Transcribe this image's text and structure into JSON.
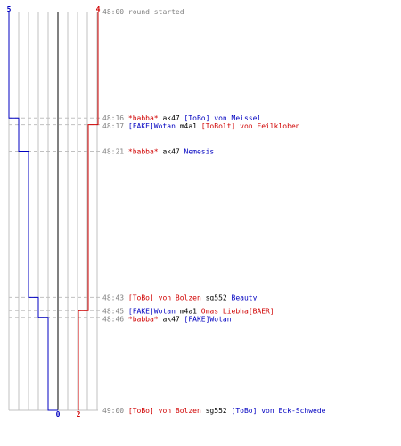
{
  "team_counts": {
    "blue_start": "5",
    "red_start": "4",
    "blue_end": "0",
    "red_end": "2"
  },
  "colors": {
    "blue": "#0000c0",
    "red": "#d00000",
    "time": "#808080",
    "text": "#000000",
    "grid": "#c0c0c0",
    "center_line": "#808080"
  },
  "events": [
    {
      "time": "48:00",
      "parts": [
        {
          "text": "round started",
          "color": "#808080"
        }
      ]
    },
    {
      "time": "48:16",
      "parts": [
        {
          "text": "*babba*",
          "color": "#d00000"
        },
        {
          "text": " ak47 ",
          "color": "#000000"
        },
        {
          "text": "[ToBo] von Meissel",
          "color": "#0000c0"
        }
      ]
    },
    {
      "time": "48:17",
      "parts": [
        {
          "text": "[FAKE]Wotan",
          "color": "#0000c0"
        },
        {
          "text": " m4a1 ",
          "color": "#000000"
        },
        {
          "text": "[ToBolt] von Feilkloben",
          "color": "#d00000"
        }
      ]
    },
    {
      "time": "48:21",
      "parts": [
        {
          "text": "*babba*",
          "color": "#d00000"
        },
        {
          "text": " ak47 ",
          "color": "#000000"
        },
        {
          "text": "Nemesis",
          "color": "#0000c0"
        }
      ]
    },
    {
      "time": "48:43",
      "parts": [
        {
          "text": "[ToBo] von Bolzen",
          "color": "#d00000"
        },
        {
          "text": " sg552 ",
          "color": "#000000"
        },
        {
          "text": "Beauty",
          "color": "#0000c0"
        }
      ]
    },
    {
      "time": "48:45",
      "parts": [
        {
          "text": "[FAKE]Wotan",
          "color": "#0000c0"
        },
        {
          "text": " m4a1 ",
          "color": "#000000"
        },
        {
          "text": "Omas Liebha[BAER]",
          "color": "#d00000"
        }
      ]
    },
    {
      "time": "48:46",
      "parts": [
        {
          "text": "*babba*",
          "color": "#d00000"
        },
        {
          "text": " ak47 ",
          "color": "#000000"
        },
        {
          "text": "[FAKE]Wotan",
          "color": "#0000c0"
        }
      ]
    },
    {
      "time": "49:00",
      "parts": [
        {
          "text": "[ToBo] von Bolzen",
          "color": "#d00000"
        },
        {
          "text": " sg552 ",
          "color": "#000000"
        },
        {
          "text": "[ToBo] von Eck-Schwede",
          "color": "#0000c0"
        }
      ]
    }
  ]
}
